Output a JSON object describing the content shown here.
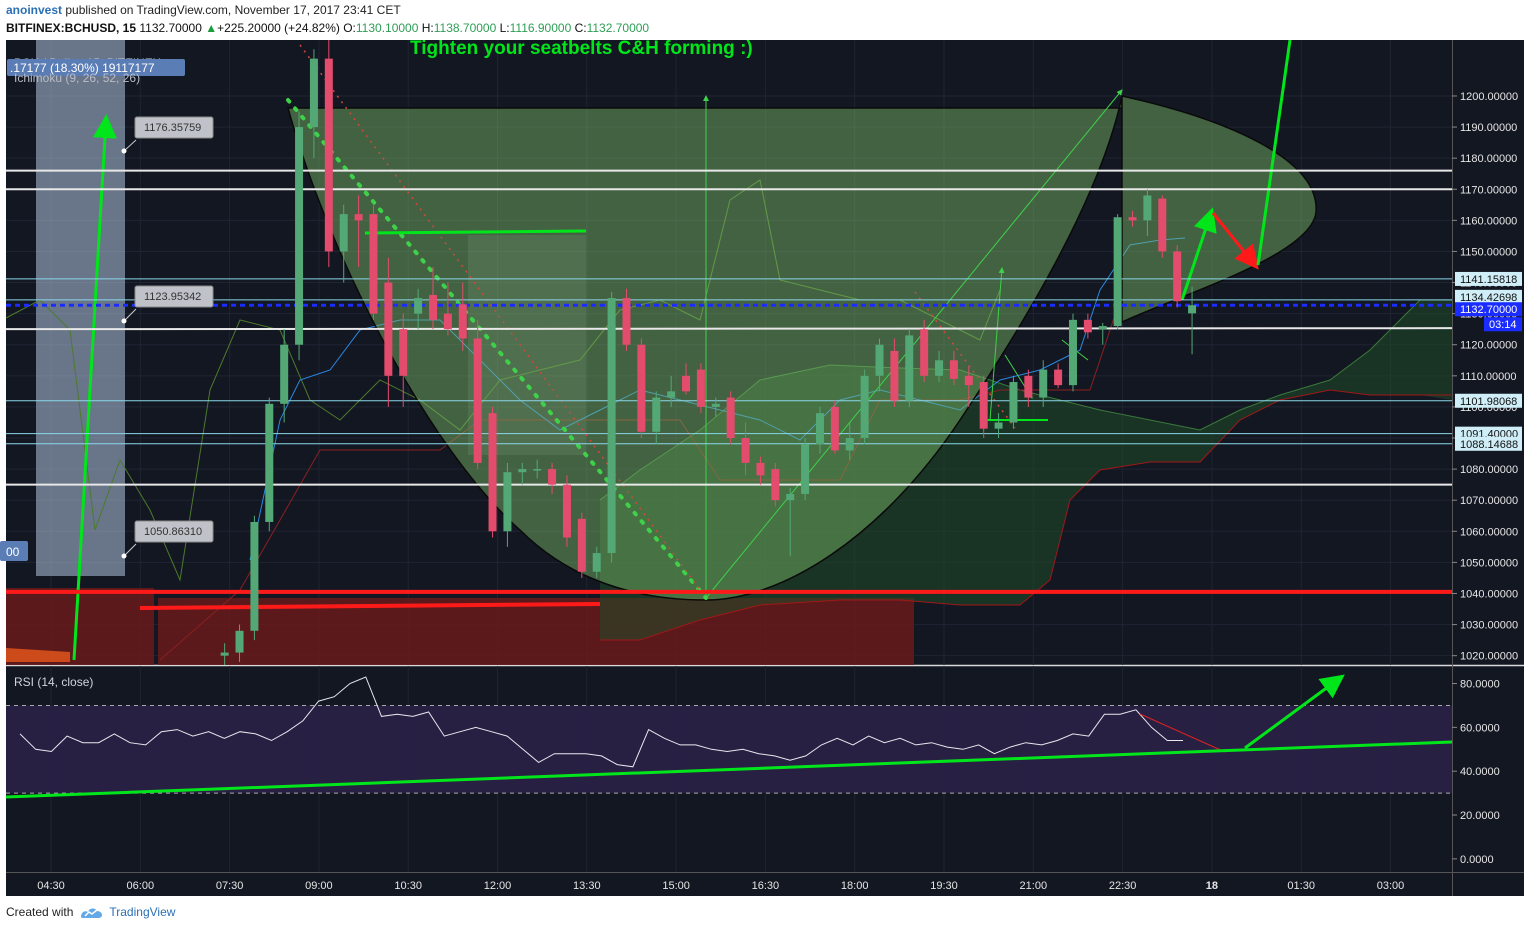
{
  "header": {
    "author": "anoinvest",
    "published_text": "published on TradingView.com, November 17, 2017 23:41 CET",
    "symbol": "BITFINEX:BCHUSD, 15",
    "last": "1132.70000",
    "change": "+225.20000 (+24.82%)",
    "o_label": "O:",
    "o_value": "1130.10000",
    "h_label": "H:",
    "h_value": "1138.70000",
    "l_label": "L:",
    "l_value": "1116.90000",
    "c_label": "C:",
    "c_value": "1132.70000"
  },
  "overlay": {
    "legend_symbol": "BCH / Dollar, 15, BITFINEX",
    "legend_volume": ".17177 (18.30%) 19117177",
    "legend_indicator": "Ichimoku (9, 26, 52, 26)",
    "annotation_title": "Tighten your seatbelts C&H forming :)",
    "left_badge": "00",
    "callouts": [
      "1176.35759",
      "1123.95342",
      "1050.86310"
    ]
  },
  "rsi": {
    "label": "RSI (14, close)"
  },
  "footer": {
    "created_with": "Created with",
    "brand": "TradingView"
  },
  "colors": {
    "background": "#131722",
    "up": "#53a876",
    "down": "#e34c6d",
    "annotation_green": "#00e61a",
    "support_red": "#ff1a1a",
    "cup_fill": "#7fbf6a",
    "rsi_band": "#2a2147"
  },
  "chart_data": {
    "type": "candlestick",
    "symbol": "BITFINEX:BCHUSD, 15",
    "price_axis": {
      "ticks": [
        1200,
        1190,
        1180,
        1170,
        1160,
        1150,
        1140,
        1130,
        1120,
        1110,
        1100,
        1090,
        1080,
        1070,
        1060,
        1050,
        1040,
        1030,
        1020
      ],
      "tick_labels": [
        "1200.00000",
        "1190.00000",
        "1180.00000",
        "1170.00000",
        "1160.00000",
        "1150.00000",
        "1140.00000",
        "1130.00000",
        "1120.00000",
        "1110.00000",
        "1100.00000",
        "1090.00000",
        "1080.00000",
        "1070.00000",
        "1060.00000",
        "1050.00000",
        "1040.00000",
        "1030.00000",
        "1020.00000"
      ],
      "range": [
        1017,
        1218
      ]
    },
    "price_labels": [
      {
        "value": 1141.15818,
        "text": "1141.15818",
        "kind": "line"
      },
      {
        "value": 1134.42698,
        "text": "1134.42698",
        "kind": "line"
      },
      {
        "value": 1132.7,
        "text": "1132.70000",
        "kind": "current"
      },
      {
        "value": 1101.98068,
        "text": "1101.98068",
        "kind": "line"
      },
      {
        "value": 1091.4,
        "text": "1091.40000",
        "kind": "line"
      },
      {
        "value": 1088.14688,
        "text": "1088.14688",
        "kind": "line"
      }
    ],
    "countdown": "03:14",
    "time_axis": [
      "04:30",
      "06:00",
      "07:30",
      "09:00",
      "10:30",
      "12:00",
      "13:30",
      "15:00",
      "16:30",
      "18:00",
      "19:30",
      "21:00",
      "22:30",
      "18",
      "01:30",
      "03:00"
    ],
    "horizontal_lines": [
      1176,
      1170,
      1125,
      1075
    ],
    "support_line": 1040.5,
    "candles": [
      {
        "t": "07:25",
        "o": 1020,
        "h": 1024,
        "l": 1017,
        "c": 1021
      },
      {
        "t": "07:40",
        "o": 1021,
        "h": 1030,
        "l": 1018,
        "c": 1028
      },
      {
        "t": "07:55",
        "o": 1028,
        "h": 1065,
        "l": 1025,
        "c": 1063
      },
      {
        "t": "08:10",
        "o": 1063,
        "h": 1103,
        "l": 1060,
        "c": 1101
      },
      {
        "t": "08:25",
        "o": 1101,
        "h": 1125,
        "l": 1095,
        "c": 1120
      },
      {
        "t": "08:40",
        "o": 1120,
        "h": 1195,
        "l": 1115,
        "c": 1190
      },
      {
        "t": "08:55",
        "o": 1190,
        "h": 1215,
        "l": 1180,
        "c": 1212
      },
      {
        "t": "09:10",
        "o": 1212,
        "h": 1218,
        "l": 1145,
        "c": 1150
      },
      {
        "t": "09:25",
        "o": 1150,
        "h": 1165,
        "l": 1140,
        "c": 1162
      },
      {
        "t": "09:40",
        "o": 1162,
        "h": 1168,
        "l": 1145,
        "c": 1160
      },
      {
        "t": "09:55",
        "o": 1162,
        "h": 1165,
        "l": 1128,
        "c": 1130
      },
      {
        "t": "10:10",
        "o": 1140,
        "h": 1148,
        "l": 1100,
        "c": 1110
      },
      {
        "t": "10:25",
        "o": 1125,
        "h": 1130,
        "l": 1100,
        "c": 1110
      },
      {
        "t": "10:40",
        "o": 1130,
        "h": 1138,
        "l": 1125,
        "c": 1135
      },
      {
        "t": "10:55",
        "o": 1136,
        "h": 1145,
        "l": 1125,
        "c": 1128
      },
      {
        "t": "11:10",
        "o": 1130,
        "h": 1140,
        "l": 1123,
        "c": 1125
      },
      {
        "t": "11:25",
        "o": 1133,
        "h": 1140,
        "l": 1118,
        "c": 1122
      },
      {
        "t": "11:40",
        "o": 1122,
        "h": 1128,
        "l": 1080,
        "c": 1082
      },
      {
        "t": "11:55",
        "o": 1098,
        "h": 1100,
        "l": 1058,
        "c": 1060
      },
      {
        "t": "12:10",
        "o": 1060,
        "h": 1082,
        "l": 1055,
        "c": 1079
      },
      {
        "t": "12:25",
        "o": 1079,
        "h": 1082,
        "l": 1075,
        "c": 1080
      },
      {
        "t": "12:40",
        "o": 1080,
        "h": 1083,
        "l": 1077,
        "c": 1080
      },
      {
        "t": "12:55",
        "o": 1080,
        "h": 1082,
        "l": 1072,
        "c": 1075
      },
      {
        "t": "13:10",
        "o": 1075,
        "h": 1078,
        "l": 1055,
        "c": 1058
      },
      {
        "t": "13:25",
        "o": 1064,
        "h": 1066,
        "l": 1045,
        "c": 1047
      },
      {
        "t": "13:40",
        "o": 1047,
        "h": 1055,
        "l": 1045,
        "c": 1053
      },
      {
        "t": "13:55",
        "o": 1053,
        "h": 1137,
        "l": 1050,
        "c": 1135
      },
      {
        "t": "14:10",
        "o": 1135,
        "h": 1138,
        "l": 1118,
        "c": 1120
      },
      {
        "t": "14:25",
        "o": 1120,
        "h": 1122,
        "l": 1090,
        "c": 1092
      },
      {
        "t": "14:40",
        "o": 1092,
        "h": 1105,
        "l": 1088,
        "c": 1103
      },
      {
        "t": "14:55",
        "o": 1103,
        "h": 1110,
        "l": 1100,
        "c": 1105
      },
      {
        "t": "15:10",
        "o": 1110,
        "h": 1114,
        "l": 1104,
        "c": 1105
      },
      {
        "t": "15:25",
        "o": 1112,
        "h": 1114,
        "l": 1098,
        "c": 1100
      },
      {
        "t": "15:40",
        "o": 1100,
        "h": 1103,
        "l": 1097,
        "c": 1101
      },
      {
        "t": "15:55",
        "o": 1103,
        "h": 1105,
        "l": 1088,
        "c": 1090
      },
      {
        "t": "16:10",
        "o": 1090,
        "h": 1095,
        "l": 1078,
        "c": 1082
      },
      {
        "t": "16:25",
        "o": 1082,
        "h": 1084,
        "l": 1075,
        "c": 1078
      },
      {
        "t": "16:40",
        "o": 1080,
        "h": 1082,
        "l": 1068,
        "c": 1070
      },
      {
        "t": "16:55",
        "o": 1070,
        "h": 1074,
        "l": 1052,
        "c": 1072
      },
      {
        "t": "17:10",
        "o": 1072,
        "h": 1090,
        "l": 1070,
        "c": 1088
      },
      {
        "t": "17:25",
        "o": 1088,
        "h": 1100,
        "l": 1085,
        "c": 1098
      },
      {
        "t": "17:40",
        "o": 1100,
        "h": 1102,
        "l": 1085,
        "c": 1086
      },
      {
        "t": "17:55",
        "o": 1086,
        "h": 1095,
        "l": 1083,
        "c": 1090
      },
      {
        "t": "18:10",
        "o": 1090,
        "h": 1112,
        "l": 1088,
        "c": 1110
      },
      {
        "t": "18:25",
        "o": 1110,
        "h": 1122,
        "l": 1105,
        "c": 1120
      },
      {
        "t": "18:40",
        "o": 1118,
        "h": 1122,
        "l": 1100,
        "c": 1102
      },
      {
        "t": "18:55",
        "o": 1102,
        "h": 1125,
        "l": 1100,
        "c": 1123
      },
      {
        "t": "19:10",
        "o": 1125,
        "h": 1128,
        "l": 1108,
        "c": 1110
      },
      {
        "t": "19:25",
        "o": 1110,
        "h": 1118,
        "l": 1108,
        "c": 1115
      },
      {
        "t": "19:40",
        "o": 1115,
        "h": 1118,
        "l": 1107,
        "c": 1109
      },
      {
        "t": "19:55",
        "o": 1110,
        "h": 1113,
        "l": 1100,
        "c": 1107
      },
      {
        "t": "20:10",
        "o": 1108,
        "h": 1110,
        "l": 1090,
        "c": 1093
      },
      {
        "t": "20:25",
        "o": 1093,
        "h": 1098,
        "l": 1090,
        "c": 1095
      },
      {
        "t": "20:40",
        "o": 1095,
        "h": 1110,
        "l": 1093,
        "c": 1108
      },
      {
        "t": "20:55",
        "o": 1110,
        "h": 1112,
        "l": 1100,
        "c": 1103
      },
      {
        "t": "21:10",
        "o": 1103,
        "h": 1115,
        "l": 1100,
        "c": 1112
      },
      {
        "t": "21:25",
        "o": 1112,
        "h": 1114,
        "l": 1106,
        "c": 1107
      },
      {
        "t": "21:40",
        "o": 1107,
        "h": 1130,
        "l": 1105,
        "c": 1128
      },
      {
        "t": "21:55",
        "o": 1128,
        "h": 1130,
        "l": 1122,
        "c": 1124
      },
      {
        "t": "22:10",
        "o": 1125,
        "h": 1127,
        "l": 1120,
        "c": 1126
      },
      {
        "t": "22:25",
        "o": 1126,
        "h": 1162,
        "l": 1125,
        "c": 1161
      },
      {
        "t": "22:40",
        "o": 1161,
        "h": 1163,
        "l": 1158,
        "c": 1160
      },
      {
        "t": "22:55",
        "o": 1160,
        "h": 1170,
        "l": 1155,
        "c": 1168
      },
      {
        "t": "23:10",
        "o": 1167,
        "h": 1168,
        "l": 1148,
        "c": 1150
      },
      {
        "t": "23:25",
        "o": 1150,
        "h": 1152,
        "l": 1132,
        "c": 1134
      },
      {
        "t": "23:40",
        "o": 1130.1,
        "h": 1138.7,
        "l": 1116.9,
        "c": 1132.7
      }
    ],
    "rsi": {
      "name": "RSI (14, close)",
      "ticks": [
        80,
        60,
        40,
        20,
        0
      ],
      "tick_labels": [
        "80.0000",
        "60.0000",
        "40.0000",
        "20.0000",
        "0.0000"
      ],
      "bands": [
        70,
        30
      ],
      "range": [
        -6,
        88
      ],
      "values": [
        57,
        50,
        49,
        56,
        53,
        53,
        57,
        53,
        52,
        58,
        59,
        56,
        58,
        55,
        58,
        57,
        54,
        58,
        63,
        72,
        74,
        80,
        83,
        65,
        66,
        65,
        67,
        56,
        58,
        60,
        58,
        56,
        50,
        44,
        48,
        48,
        48,
        47,
        43,
        42,
        59,
        55,
        52,
        52,
        50,
        49,
        50,
        48,
        47,
        45,
        47,
        52,
        55,
        52,
        56,
        53,
        55,
        52,
        53,
        51,
        50,
        52,
        48,
        51,
        53,
        52,
        54,
        57,
        56,
        66,
        66,
        68,
        60,
        54,
        54
      ]
    }
  }
}
